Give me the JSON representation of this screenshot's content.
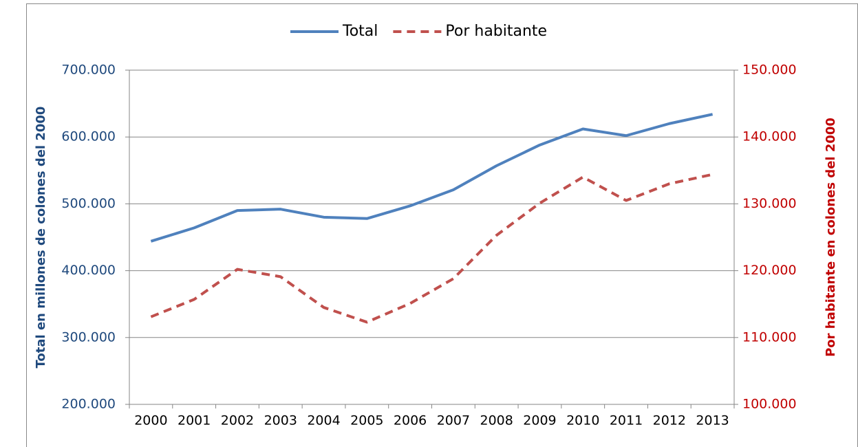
{
  "chart_data": {
    "type": "line",
    "categories": [
      "2000",
      "2001",
      "2002",
      "2003",
      "2004",
      "2005",
      "2006",
      "2007",
      "2008",
      "2009",
      "2010",
      "2011",
      "2012",
      "2013"
    ],
    "series": [
      {
        "name": "Total",
        "color": "#4f81bd",
        "dash": false,
        "values": [
          444000,
          464000,
          490000,
          492000,
          480000,
          478000,
          497000,
          521000,
          557000,
          588000,
          612000,
          602000,
          620000,
          634000
        ]
      },
      {
        "name": "Por habitante",
        "color": "#c0504d",
        "dash": true,
        "axis": "y2",
        "values": [
          113100,
          115700,
          120200,
          119100,
          114500,
          112300,
          115100,
          118800,
          125300,
          130100,
          134000,
          130500,
          133000,
          134400
        ]
      }
    ],
    "ylabel": "Total en millones de colones del 2000",
    "y2label": "Por habitante en colones del 2000",
    "ylim": [
      200000,
      700000
    ],
    "yticks": [
      {
        "value": 200000,
        "label": "200.000"
      },
      {
        "value": 300000,
        "label": "300.000"
      },
      {
        "value": 400000,
        "label": "400.000"
      },
      {
        "value": 500000,
        "label": "500.000"
      },
      {
        "value": 600000,
        "label": "600.000"
      },
      {
        "value": 700000,
        "label": "700.000"
      }
    ],
    "y2lim": [
      100000,
      150000
    ],
    "y2ticks": [
      {
        "value": 100000,
        "label": "100.000"
      },
      {
        "value": 110000,
        "label": "110.000"
      },
      {
        "value": 120000,
        "label": "120.000"
      },
      {
        "value": 130000,
        "label": "130.000"
      },
      {
        "value": 140000,
        "label": "140.000"
      },
      {
        "value": 150000,
        "label": "150.000"
      }
    ],
    "grid": true,
    "legend": "top"
  }
}
